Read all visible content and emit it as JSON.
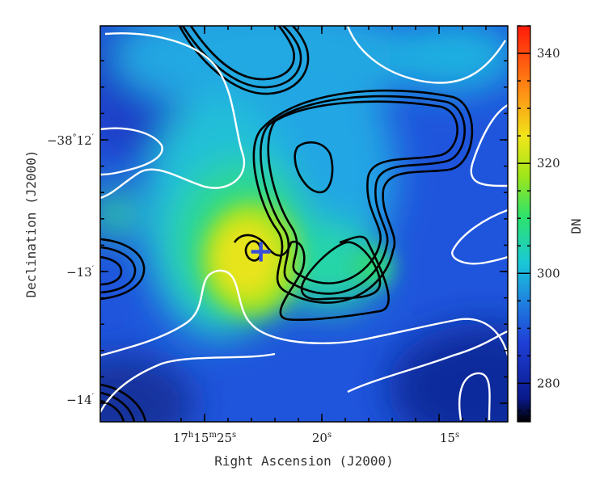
{
  "chart_data": {
    "type": "heatmap",
    "xlabel": "Right Ascension (J2000)",
    "ylabel": "Declination (J2000)",
    "colorbar_label": "DN",
    "colorbar_range": [
      273,
      345
    ],
    "colorbar_ticks": [
      280,
      300,
      320,
      340
    ],
    "x_ticks": [
      {
        "label": "17h15m25s",
        "h": "17",
        "m": "15",
        "s": "25",
        "ra_sec": 25
      },
      {
        "label": "20s",
        "s": "20",
        "ra_sec": 20
      },
      {
        "label": "15s",
        "s": "15",
        "ra_sec": 15
      }
    ],
    "y_ticks": [
      {
        "label": "−38°12′",
        "deg": "−38",
        "min": "12",
        "dec_arcmin": -12
      },
      {
        "label": "−13′",
        "min": "−13",
        "dec_arcmin": -13
      },
      {
        "label": "−14′",
        "min": "−14",
        "dec_arcmin": -14
      }
    ],
    "marker": {
      "symbol": "+",
      "color": "#3a4fd8",
      "ra_sec": 22.6,
      "dec_arcmin": -12.85
    },
    "colormap": [
      "#000000",
      "#0a1a8c",
      "#1f3fd6",
      "#1f7fe0",
      "#19c8d8",
      "#2ee36a",
      "#9ee61a",
      "#f0e61a",
      "#ff8a14",
      "#ff1a0a"
    ],
    "contour_colors": {
      "high": "#000000",
      "low": "#ffffff"
    }
  }
}
